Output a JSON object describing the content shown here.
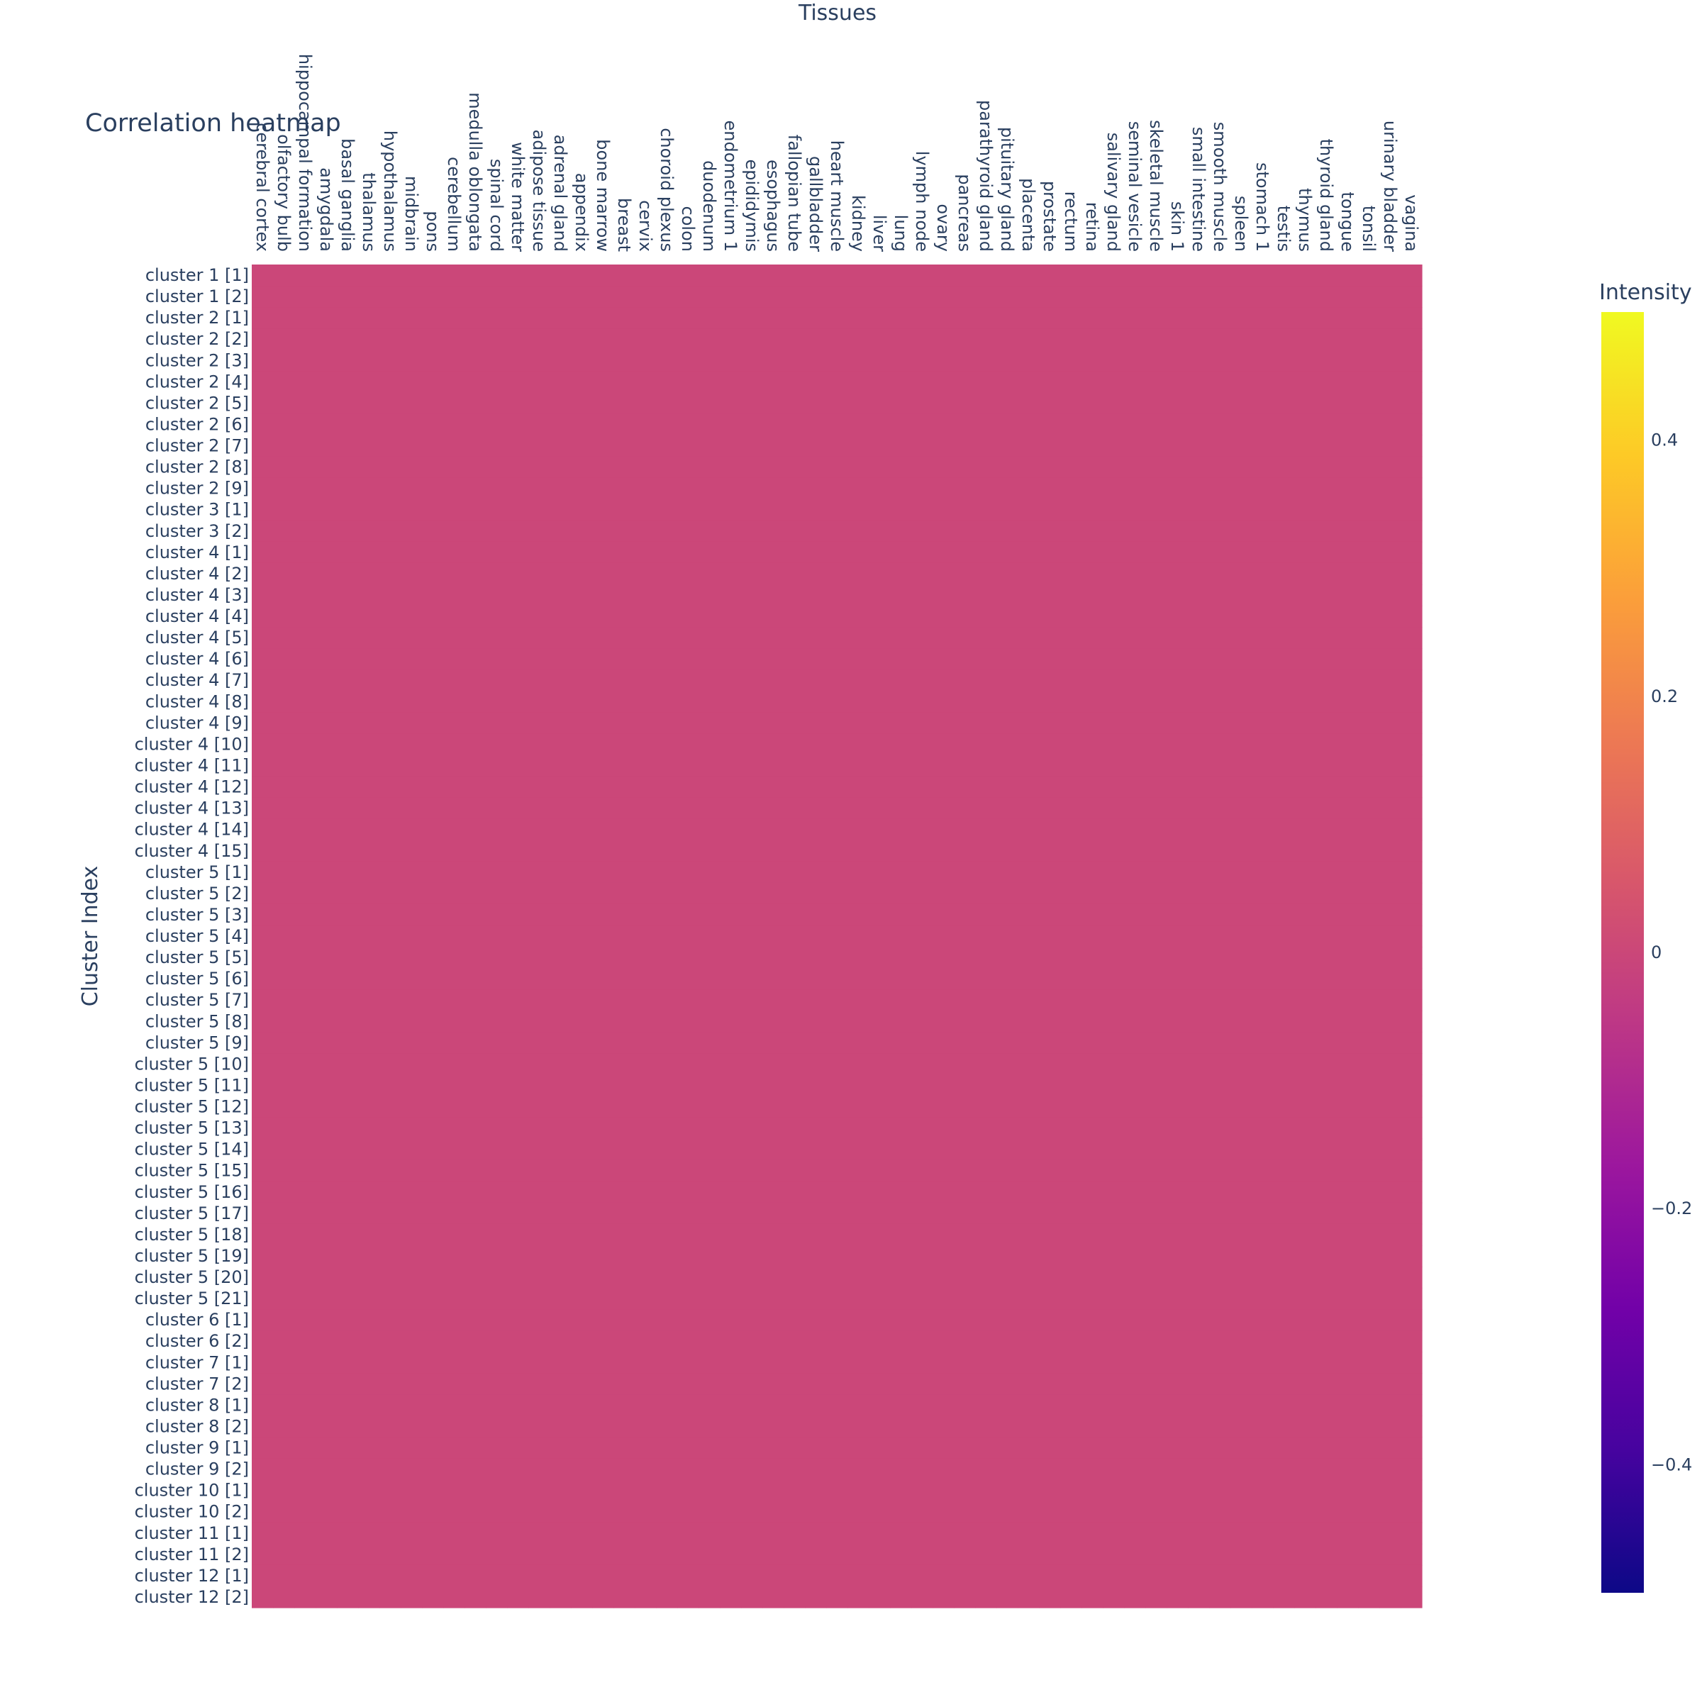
{
  "chart_data": {
    "type": "heatmap",
    "title": "Correlation heatmap",
    "xlabel": "Tissues",
    "ylabel": "Cluster Index",
    "x_axis_side": "top",
    "x": [
      "cerebral cortex",
      "olfactory bulb",
      "hippocampal formation",
      "amygdala",
      "basal ganglia",
      "thalamus",
      "hypothalamus",
      "midbrain",
      "pons",
      "cerebellum",
      "medulla oblongata",
      "spinal cord",
      "white matter",
      "adipose tissue",
      "adrenal gland",
      "appendix",
      "bone marrow",
      "breast",
      "cervix",
      "choroid plexus",
      "colon",
      "duodenum",
      "endometrium 1",
      "epididymis",
      "esophagus",
      "fallopian tube",
      "gallbladder",
      "heart muscle",
      "kidney",
      "liver",
      "lung",
      "lymph node",
      "ovary",
      "pancreas",
      "parathyroid gland",
      "pituitary gland",
      "placenta",
      "prostate",
      "rectum",
      "retina",
      "salivary gland",
      "seminal vesicle",
      "skeletal muscle",
      "skin 1",
      "small intestine",
      "smooth muscle",
      "spleen",
      "stomach 1",
      "testis",
      "thymus",
      "thyroid gland",
      "tongue",
      "tonsil",
      "urinary bladder",
      "vagina"
    ],
    "y": [
      "cluster 1 [1]",
      "cluster 1 [2]",
      "cluster 2 [1]",
      "cluster 2 [2]",
      "cluster 2 [3]",
      "cluster 2 [4]",
      "cluster 2 [5]",
      "cluster 2 [6]",
      "cluster 2 [7]",
      "cluster 2 [8]",
      "cluster 2 [9]",
      "cluster 3 [1]",
      "cluster 3 [2]",
      "cluster 4 [1]",
      "cluster 4 [2]",
      "cluster 4 [3]",
      "cluster 4 [4]",
      "cluster 4 [5]",
      "cluster 4 [6]",
      "cluster 4 [7]",
      "cluster 4 [8]",
      "cluster 4 [9]",
      "cluster 4 [10]",
      "cluster 4 [11]",
      "cluster 4 [12]",
      "cluster 4 [13]",
      "cluster 4 [14]",
      "cluster 4 [15]",
      "cluster 5 [1]",
      "cluster 5 [2]",
      "cluster 5 [3]",
      "cluster 5 [4]",
      "cluster 5 [5]",
      "cluster 5 [6]",
      "cluster 5 [7]",
      "cluster 5 [8]",
      "cluster 5 [9]",
      "cluster 5 [10]",
      "cluster 5 [11]",
      "cluster 5 [12]",
      "cluster 5 [13]",
      "cluster 5 [14]",
      "cluster 5 [15]",
      "cluster 5 [16]",
      "cluster 5 [17]",
      "cluster 5 [18]",
      "cluster 5 [19]",
      "cluster 5 [20]",
      "cluster 5 [21]",
      "cluster 6 [1]",
      "cluster 6 [2]",
      "cluster 7 [1]",
      "cluster 7 [2]",
      "cluster 8 [1]",
      "cluster 8 [2]",
      "cluster 9 [1]",
      "cluster 9 [2]",
      "cluster 10 [1]",
      "cluster 10 [2]",
      "cluster 11 [1]",
      "cluster 11 [2]",
      "cluster 12 [1]",
      "cluster 12 [2]"
    ],
    "z_fill_value": 0,
    "z_note_all_cells": 0,
    "colorbar": {
      "title": "Intensity",
      "range": [
        -0.5,
        0.5
      ],
      "ticks": [
        0.4,
        0.2,
        0,
        -0.2,
        -0.4
      ],
      "tick_labels": [
        "0.4",
        "0.2",
        "0",
        "−0.2",
        "−0.4"
      ],
      "colorscale": [
        "#0d0887",
        "#46039f",
        "#7201a8",
        "#9c179e",
        "#bd3786",
        "#d8576b",
        "#ed7953",
        "#fb9f3a",
        "#fdca26",
        "#f0f921"
      ]
    },
    "grid": false
  }
}
